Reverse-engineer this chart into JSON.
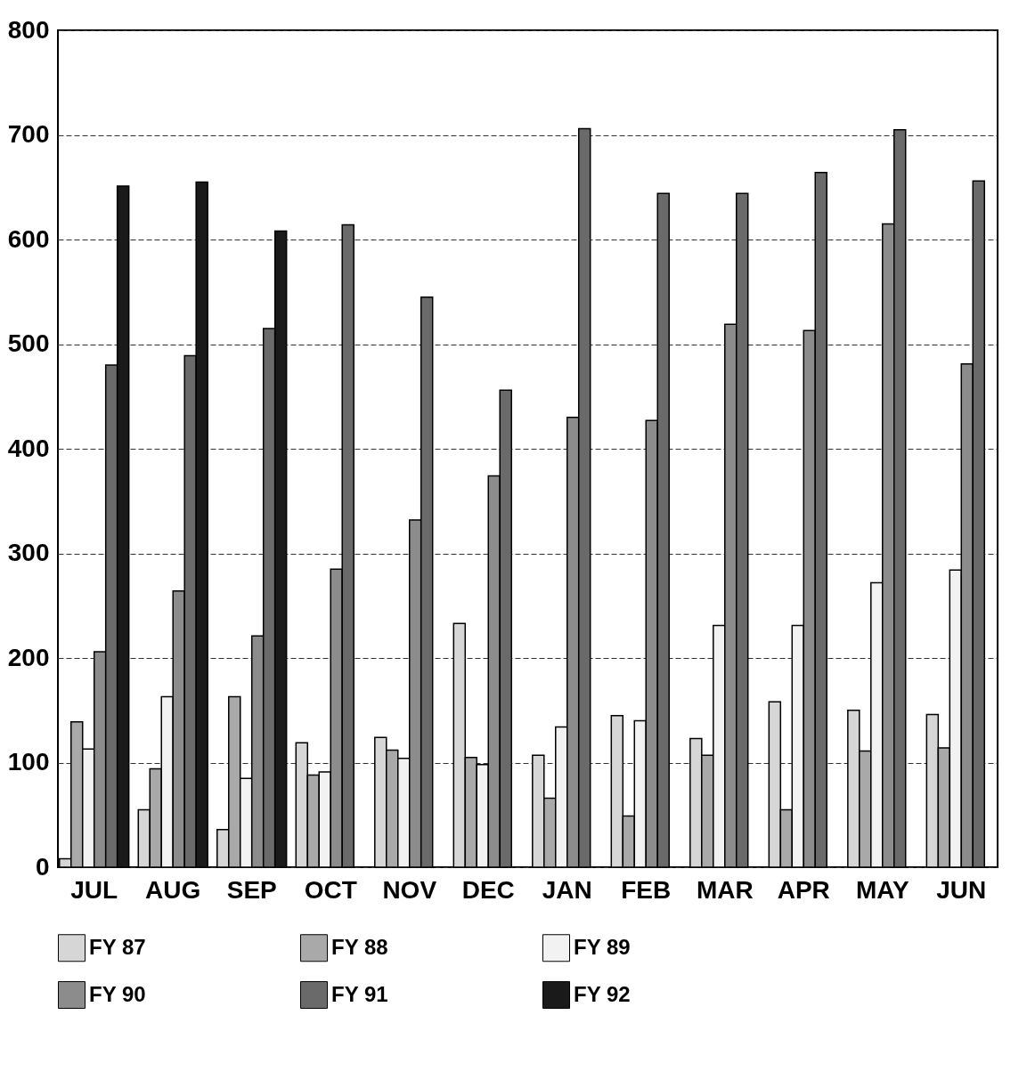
{
  "chart_data": {
    "type": "bar",
    "categories": [
      "JUL",
      "AUG",
      "SEP",
      "OCT",
      "NOV",
      "DEC",
      "JAN",
      "FEB",
      "MAR",
      "APR",
      "MAY",
      "JUN"
    ],
    "series": [
      {
        "name": "FY 87",
        "color": "#d6d6d6",
        "values": [
          8,
          55,
          36,
          119,
          124,
          233,
          107,
          145,
          123,
          158,
          150,
          146
        ]
      },
      {
        "name": "FY 88",
        "color": "#a9a9a9",
        "values": [
          139,
          94,
          163,
          88,
          112,
          105,
          66,
          49,
          107,
          55,
          111,
          114
        ]
      },
      {
        "name": "FY 89",
        "color": "#f2f2f2",
        "values": [
          113,
          163,
          85,
          91,
          104,
          98,
          134,
          140,
          231,
          231,
          272,
          284
        ]
      },
      {
        "name": "FY 90",
        "color": "#8c8c8c",
        "values": [
          206,
          264,
          221,
          285,
          332,
          374,
          430,
          427,
          519,
          513,
          615,
          481
        ]
      },
      {
        "name": "FY 91",
        "color": "#6a6a6a",
        "values": [
          480,
          489,
          515,
          614,
          545,
          456,
          706,
          644,
          644,
          664,
          705,
          656
        ]
      },
      {
        "name": "FY 92",
        "color": "#1a1a1a",
        "values": [
          651,
          655,
          608,
          null,
          null,
          null,
          null,
          null,
          null,
          null,
          null,
          null
        ]
      }
    ],
    "ylim": [
      0,
      800
    ],
    "yticks": [
      0,
      100,
      200,
      300,
      400,
      500,
      600,
      700,
      800
    ],
    "grid": "y",
    "legend": "bottom"
  }
}
